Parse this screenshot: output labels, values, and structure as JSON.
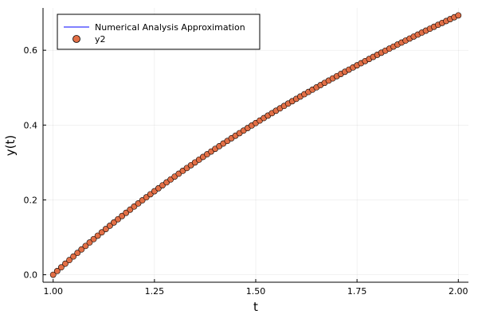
{
  "chart_data": {
    "type": "line",
    "xlabel": "t",
    "ylabel": "y(t)",
    "xlim": [
      0.975,
      2.025
    ],
    "ylim": [
      -0.02,
      0.713
    ],
    "x_ticks": [
      1.0,
      1.25,
      1.5,
      1.75,
      2.0
    ],
    "x_tick_labels": [
      "1.00",
      "1.25",
      "1.50",
      "1.75",
      "2.00"
    ],
    "y_ticks": [
      0.0,
      0.2,
      0.4,
      0.6
    ],
    "y_tick_labels": [
      "0.0",
      "0.2",
      "0.4",
      "0.6"
    ],
    "grid": true,
    "legend_position": "top-left",
    "series": [
      {
        "name": "Numerical Analysis Approximation",
        "kind": "line",
        "color": "#0000ff",
        "function": "ln(t)",
        "x_start": 1.0,
        "x_end": 2.0,
        "x_step": 0.01
      },
      {
        "name": "y2",
        "kind": "scatter",
        "color": "#e26f46",
        "function": "ln(t)",
        "x_start": 1.0,
        "x_end": 2.0,
        "x_step": 0.01
      }
    ]
  }
}
